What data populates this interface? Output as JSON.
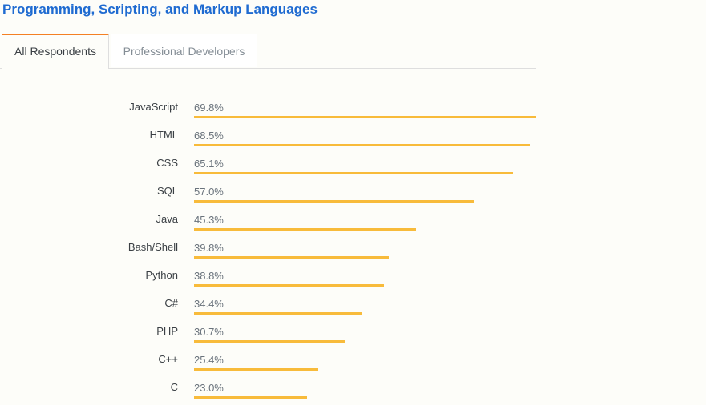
{
  "title": "Programming, Scripting, and Markup Languages",
  "tabs": [
    {
      "label": "All Respondents",
      "active": true
    },
    {
      "label": "Professional Developers",
      "active": false
    }
  ],
  "colors": {
    "title": "#1f6bd1",
    "tab_accent": "#f48024",
    "bar": "#f8bb3b"
  },
  "chart_data": {
    "type": "bar",
    "orientation": "horizontal",
    "title": "Programming, Scripting, and Markup Languages",
    "series_name": "All Respondents",
    "unit": "%",
    "xlim": [
      0,
      69.8
    ],
    "categories": [
      "JavaScript",
      "HTML",
      "CSS",
      "SQL",
      "Java",
      "Bash/Shell",
      "Python",
      "C#",
      "PHP",
      "C++",
      "C"
    ],
    "values": [
      69.8,
      68.5,
      65.1,
      57.0,
      45.3,
      39.8,
      38.8,
      34.4,
      30.7,
      25.4,
      23.0
    ],
    "value_labels": [
      "69.8%",
      "68.5%",
      "65.1%",
      "57.0%",
      "45.3%",
      "39.8%",
      "38.8%",
      "34.4%",
      "30.7%",
      "25.4%",
      "23.0%"
    ]
  }
}
